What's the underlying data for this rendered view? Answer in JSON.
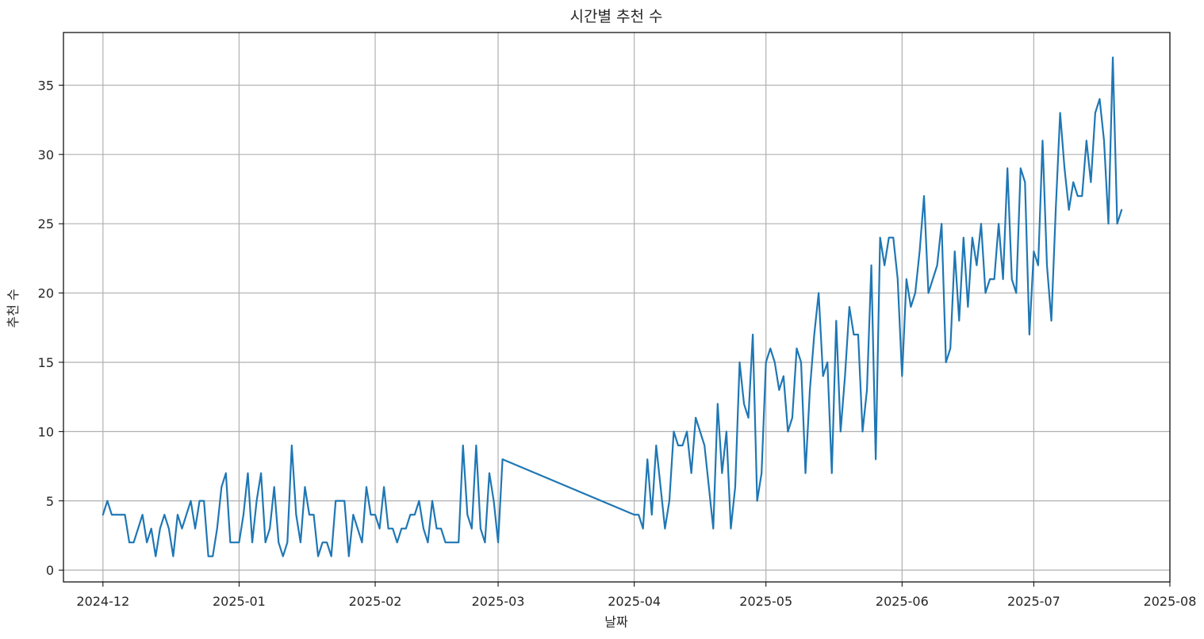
{
  "chart_data": {
    "type": "line",
    "title": "시간별 추천 수",
    "xlabel": "날짜",
    "ylabel": "추천 수",
    "grid": true,
    "legend": "none",
    "color": "#1f77b4",
    "x_range": [
      "2024-11-22",
      "2025-08-01"
    ],
    "ylim": [
      -0.85,
      38.8
    ],
    "x_ticks": [
      "2024-12",
      "2025-01",
      "2025-02",
      "2025-03",
      "2025-04",
      "2025-05",
      "2025-06",
      "2025-07",
      "2025-08"
    ],
    "x_tick_dates": [
      "2024-12-01",
      "2025-01-01",
      "2025-02-01",
      "2025-03-01",
      "2025-04-01",
      "2025-05-01",
      "2025-06-01",
      "2025-07-01",
      "2025-08-01"
    ],
    "y_ticks": [
      0,
      5,
      10,
      15,
      20,
      25,
      30,
      35
    ],
    "series": [
      {
        "points": [
          [
            "2024-12-01",
            4
          ],
          [
            "2024-12-02",
            5
          ],
          [
            "2024-12-03",
            4
          ],
          [
            "2024-12-04",
            4
          ],
          [
            "2024-12-05",
            4
          ],
          [
            "2024-12-06",
            4
          ],
          [
            "2024-12-07",
            2
          ],
          [
            "2024-12-08",
            2
          ],
          [
            "2024-12-09",
            3
          ],
          [
            "2024-12-10",
            4
          ],
          [
            "2024-12-11",
            2
          ],
          [
            "2024-12-12",
            3
          ],
          [
            "2024-12-13",
            1
          ],
          [
            "2024-12-14",
            3
          ],
          [
            "2024-12-15",
            4
          ],
          [
            "2024-12-16",
            3
          ],
          [
            "2024-12-17",
            1
          ],
          [
            "2024-12-18",
            4
          ],
          [
            "2024-12-19",
            3
          ],
          [
            "2024-12-20",
            4
          ],
          [
            "2024-12-21",
            5
          ],
          [
            "2024-12-22",
            3
          ],
          [
            "2024-12-23",
            5
          ],
          [
            "2024-12-24",
            5
          ],
          [
            "2024-12-25",
            1
          ],
          [
            "2024-12-26",
            1
          ],
          [
            "2024-12-27",
            3
          ],
          [
            "2024-12-28",
            6
          ],
          [
            "2024-12-29",
            7
          ],
          [
            "2024-12-30",
            2
          ],
          [
            "2024-12-31",
            2
          ],
          [
            "2025-01-01",
            2
          ],
          [
            "2025-01-02",
            4
          ],
          [
            "2025-01-03",
            7
          ],
          [
            "2025-01-04",
            2
          ],
          [
            "2025-01-05",
            5
          ],
          [
            "2025-01-06",
            7
          ],
          [
            "2025-01-07",
            2
          ],
          [
            "2025-01-08",
            3
          ],
          [
            "2025-01-09",
            6
          ],
          [
            "2025-01-10",
            2
          ],
          [
            "2025-01-11",
            1
          ],
          [
            "2025-01-12",
            2
          ],
          [
            "2025-01-13",
            9
          ],
          [
            "2025-01-14",
            4
          ],
          [
            "2025-01-15",
            2
          ],
          [
            "2025-01-16",
            6
          ],
          [
            "2025-01-17",
            4
          ],
          [
            "2025-01-18",
            4
          ],
          [
            "2025-01-19",
            1
          ],
          [
            "2025-01-20",
            2
          ],
          [
            "2025-01-21",
            2
          ],
          [
            "2025-01-22",
            1
          ],
          [
            "2025-01-23",
            5
          ],
          [
            "2025-01-24",
            5
          ],
          [
            "2025-01-25",
            5
          ],
          [
            "2025-01-26",
            1
          ],
          [
            "2025-01-27",
            4
          ],
          [
            "2025-01-28",
            3
          ],
          [
            "2025-01-29",
            2
          ],
          [
            "2025-01-30",
            6
          ],
          [
            "2025-01-31",
            4
          ],
          [
            "2025-02-01",
            4
          ],
          [
            "2025-02-02",
            3
          ],
          [
            "2025-02-03",
            6
          ],
          [
            "2025-02-04",
            3
          ],
          [
            "2025-02-05",
            3
          ],
          [
            "2025-02-06",
            2
          ],
          [
            "2025-02-07",
            3
          ],
          [
            "2025-02-08",
            3
          ],
          [
            "2025-02-09",
            4
          ],
          [
            "2025-02-10",
            4
          ],
          [
            "2025-02-11",
            5
          ],
          [
            "2025-02-12",
            3
          ],
          [
            "2025-02-13",
            2
          ],
          [
            "2025-02-14",
            5
          ],
          [
            "2025-02-15",
            3
          ],
          [
            "2025-02-16",
            3
          ],
          [
            "2025-02-17",
            2
          ],
          [
            "2025-02-18",
            2
          ],
          [
            "2025-02-19",
            2
          ],
          [
            "2025-02-20",
            2
          ],
          [
            "2025-02-21",
            9
          ],
          [
            "2025-02-22",
            4
          ],
          [
            "2025-02-23",
            3
          ],
          [
            "2025-02-24",
            9
          ],
          [
            "2025-02-25",
            3
          ],
          [
            "2025-02-26",
            2
          ],
          [
            "2025-02-27",
            7
          ],
          [
            "2025-02-28",
            5
          ],
          [
            "2025-03-01",
            2
          ],
          [
            "2025-03-02",
            8
          ],
          [
            "2025-04-01",
            4
          ],
          [
            "2025-04-02",
            4
          ],
          [
            "2025-04-03",
            3
          ],
          [
            "2025-04-04",
            8
          ],
          [
            "2025-04-05",
            4
          ],
          [
            "2025-04-06",
            9
          ],
          [
            "2025-04-07",
            6
          ],
          [
            "2025-04-08",
            3
          ],
          [
            "2025-04-09",
            5
          ],
          [
            "2025-04-10",
            10
          ],
          [
            "2025-04-11",
            9
          ],
          [
            "2025-04-12",
            9
          ],
          [
            "2025-04-13",
            10
          ],
          [
            "2025-04-14",
            7
          ],
          [
            "2025-04-15",
            11
          ],
          [
            "2025-04-16",
            10
          ],
          [
            "2025-04-17",
            9
          ],
          [
            "2025-04-18",
            6
          ],
          [
            "2025-04-19",
            3
          ],
          [
            "2025-04-20",
            12
          ],
          [
            "2025-04-21",
            7
          ],
          [
            "2025-04-22",
            10
          ],
          [
            "2025-04-23",
            3
          ],
          [
            "2025-04-24",
            6
          ],
          [
            "2025-04-25",
            15
          ],
          [
            "2025-04-26",
            12
          ],
          [
            "2025-04-27",
            11
          ],
          [
            "2025-04-28",
            17
          ],
          [
            "2025-04-29",
            5
          ],
          [
            "2025-04-30",
            7
          ],
          [
            "2025-05-01",
            15
          ],
          [
            "2025-05-02",
            16
          ],
          [
            "2025-05-03",
            15
          ],
          [
            "2025-05-04",
            13
          ],
          [
            "2025-05-05",
            14
          ],
          [
            "2025-05-06",
            10
          ],
          [
            "2025-05-07",
            11
          ],
          [
            "2025-05-08",
            16
          ],
          [
            "2025-05-09",
            15
          ],
          [
            "2025-05-10",
            7
          ],
          [
            "2025-05-11",
            13
          ],
          [
            "2025-05-12",
            17
          ],
          [
            "2025-05-13",
            20
          ],
          [
            "2025-05-14",
            14
          ],
          [
            "2025-05-15",
            15
          ],
          [
            "2025-05-16",
            7
          ],
          [
            "2025-05-17",
            18
          ],
          [
            "2025-05-18",
            10
          ],
          [
            "2025-05-19",
            14
          ],
          [
            "2025-05-20",
            19
          ],
          [
            "2025-05-21",
            17
          ],
          [
            "2025-05-22",
            17
          ],
          [
            "2025-05-23",
            10
          ],
          [
            "2025-05-24",
            13
          ],
          [
            "2025-05-25",
            22
          ],
          [
            "2025-05-26",
            8
          ],
          [
            "2025-05-27",
            24
          ],
          [
            "2025-05-28",
            22
          ],
          [
            "2025-05-29",
            24
          ],
          [
            "2025-05-30",
            24
          ],
          [
            "2025-05-31",
            21
          ],
          [
            "2025-06-01",
            14
          ],
          [
            "2025-06-02",
            21
          ],
          [
            "2025-06-03",
            19
          ],
          [
            "2025-06-04",
            20
          ],
          [
            "2025-06-05",
            23
          ],
          [
            "2025-06-06",
            27
          ],
          [
            "2025-06-07",
            20
          ],
          [
            "2025-06-08",
            21
          ],
          [
            "2025-06-09",
            22
          ],
          [
            "2025-06-10",
            25
          ],
          [
            "2025-06-11",
            15
          ],
          [
            "2025-06-12",
            16
          ],
          [
            "2025-06-13",
            23
          ],
          [
            "2025-06-14",
            18
          ],
          [
            "2025-06-15",
            24
          ],
          [
            "2025-06-16",
            19
          ],
          [
            "2025-06-17",
            24
          ],
          [
            "2025-06-18",
            22
          ],
          [
            "2025-06-19",
            25
          ],
          [
            "2025-06-20",
            20
          ],
          [
            "2025-06-21",
            21
          ],
          [
            "2025-06-22",
            21
          ],
          [
            "2025-06-23",
            25
          ],
          [
            "2025-06-24",
            21
          ],
          [
            "2025-06-25",
            29
          ],
          [
            "2025-06-26",
            21
          ],
          [
            "2025-06-27",
            20
          ],
          [
            "2025-06-28",
            29
          ],
          [
            "2025-06-29",
            28
          ],
          [
            "2025-06-30",
            17
          ],
          [
            "2025-07-01",
            23
          ],
          [
            "2025-07-02",
            22
          ],
          [
            "2025-07-03",
            31
          ],
          [
            "2025-07-04",
            22
          ],
          [
            "2025-07-05",
            18
          ],
          [
            "2025-07-06",
            26
          ],
          [
            "2025-07-07",
            33
          ],
          [
            "2025-07-08",
            29
          ],
          [
            "2025-07-09",
            26
          ],
          [
            "2025-07-10",
            28
          ],
          [
            "2025-07-11",
            27
          ],
          [
            "2025-07-12",
            27
          ],
          [
            "2025-07-13",
            31
          ],
          [
            "2025-07-14",
            28
          ],
          [
            "2025-07-15",
            33
          ],
          [
            "2025-07-16",
            34
          ],
          [
            "2025-07-17",
            31
          ],
          [
            "2025-07-18",
            25
          ],
          [
            "2025-07-19",
            37
          ],
          [
            "2025-07-20",
            25
          ],
          [
            "2025-07-21",
            26
          ]
        ]
      }
    ]
  }
}
